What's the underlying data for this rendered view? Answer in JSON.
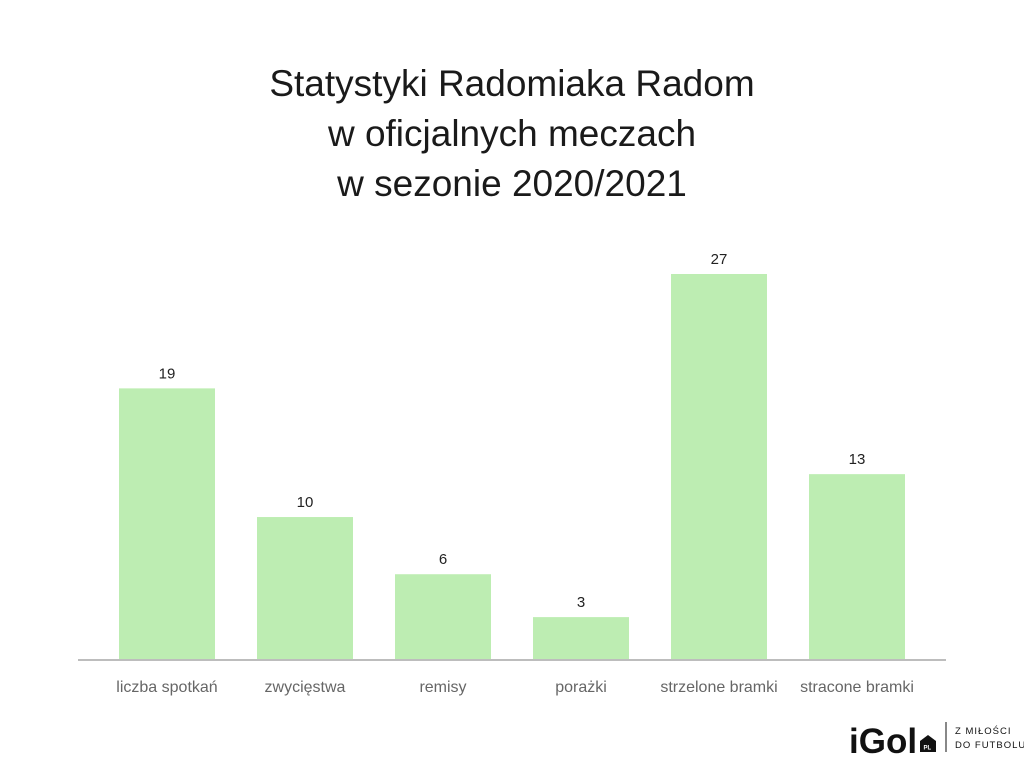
{
  "chart_data": {
    "type": "bar",
    "title_lines": [
      "Statystyki Radomiaka Radom",
      "w oficjalnych meczach",
      "w sezonie 2020/2021"
    ],
    "categories": [
      "liczba spotkań",
      "zwycięstwa",
      "remisy",
      "porażki",
      "strzelone bramki",
      "stracone bramki"
    ],
    "values": [
      19,
      10,
      6,
      3,
      27,
      13
    ],
    "data_labels": [
      "19",
      "10",
      "6",
      "3",
      "27",
      "13"
    ],
    "ylim": [
      0,
      27
    ],
    "grid": false,
    "legend": "none",
    "colors": {
      "bar": "#bdedb2",
      "axis": "#bdbdbd",
      "title": "#1a1a1a",
      "category_text": "#666666"
    }
  },
  "branding": {
    "logo_text": "iGol",
    "badge_text": "PL",
    "tagline_line1": "Z MIŁOŚCI",
    "tagline_line2": "DO FUTBOLU"
  }
}
